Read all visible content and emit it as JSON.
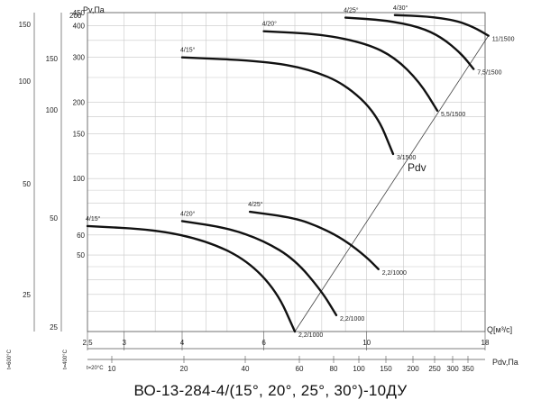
{
  "caption": "ВО-13-284-4/(15°, 20°, 25°, 30°)-10ДУ",
  "chart_data": {
    "type": "line",
    "title": "",
    "ylabel": "Pv,Па",
    "xlabel_q": "Q[м³/с]",
    "xlabel_pdv": "Pdv,Па",
    "pdv_line_label": "Pdv",
    "y_ticks": [
      "450",
      "400",
      "300",
      "200",
      "150",
      "100",
      "60"
    ],
    "y_ticks_extra": [
      "50"
    ],
    "y_ticks_top": [
      "200"
    ],
    "y_temp_600": [
      "150",
      "100",
      "50",
      "25"
    ],
    "y_temp_400": [
      "150",
      "100",
      "50",
      "25"
    ],
    "temp_labels": [
      "t=600°C",
      "t=400°C",
      "t=20°C"
    ],
    "x_q_ticks": [
      "2,5",
      "3",
      "4",
      "6",
      "10",
      "18"
    ],
    "x_pdv_ticks": [
      "10",
      "20",
      "40",
      "60",
      "80",
      "100",
      "150",
      "200",
      "250",
      "300",
      "350"
    ],
    "curves": [
      {
        "label": "4/15°",
        "points": [
          [
            2.5,
            65
          ],
          [
            3.5,
            63
          ],
          [
            4.5,
            57
          ],
          [
            5.5,
            48
          ],
          [
            6.4,
            36
          ],
          [
            7.0,
            25
          ]
        ],
        "end_label": "2,2/1000"
      },
      {
        "label": "4/20°",
        "points": [
          [
            4.0,
            68
          ],
          [
            5.0,
            64
          ],
          [
            6.0,
            57
          ],
          [
            7.0,
            48
          ],
          [
            8.0,
            36
          ],
          [
            8.6,
            29
          ]
        ],
        "end_label": "2,2/1000"
      },
      {
        "label": "4/25°",
        "points": [
          [
            5.6,
            74
          ],
          [
            7.0,
            70
          ],
          [
            8.0,
            64
          ],
          [
            9.0,
            57
          ],
          [
            10.0,
            49
          ],
          [
            10.6,
            44
          ]
        ],
        "end_label": "2,2/1000"
      },
      {
        "label": "4/15°",
        "points": [
          [
            4.0,
            300
          ],
          [
            6.0,
            290
          ],
          [
            7.5,
            270
          ],
          [
            9.0,
            235
          ],
          [
            10.5,
            180
          ],
          [
            11.4,
            125
          ]
        ],
        "end_label": "3/1500"
      },
      {
        "label": "4/20°",
        "points": [
          [
            6.0,
            380
          ],
          [
            8.0,
            370
          ],
          [
            10.0,
            340
          ],
          [
            11.5,
            300
          ],
          [
            13.0,
            240
          ],
          [
            14.2,
            185
          ]
        ],
        "end_label": "5,5/1500"
      },
      {
        "label": "4/25°",
        "points": [
          [
            9.0,
            430
          ],
          [
            11.0,
            420
          ],
          [
            13.0,
            395
          ],
          [
            14.5,
            360
          ],
          [
            16.0,
            310
          ],
          [
            17.0,
            270
          ]
        ],
        "end_label": "7,5/1500"
      },
      {
        "label": "4/30°",
        "points": [
          [
            11.5,
            440
          ],
          [
            13.5,
            435
          ],
          [
            15.5,
            420
          ],
          [
            17.0,
            395
          ],
          [
            18.3,
            365
          ]
        ],
        "end_label": "11/1500"
      }
    ],
    "pdv_line": {
      "points": [
        [
          7.0,
          25
        ],
        [
          18.3,
          365
        ]
      ]
    },
    "grid": true,
    "legend": "none"
  }
}
